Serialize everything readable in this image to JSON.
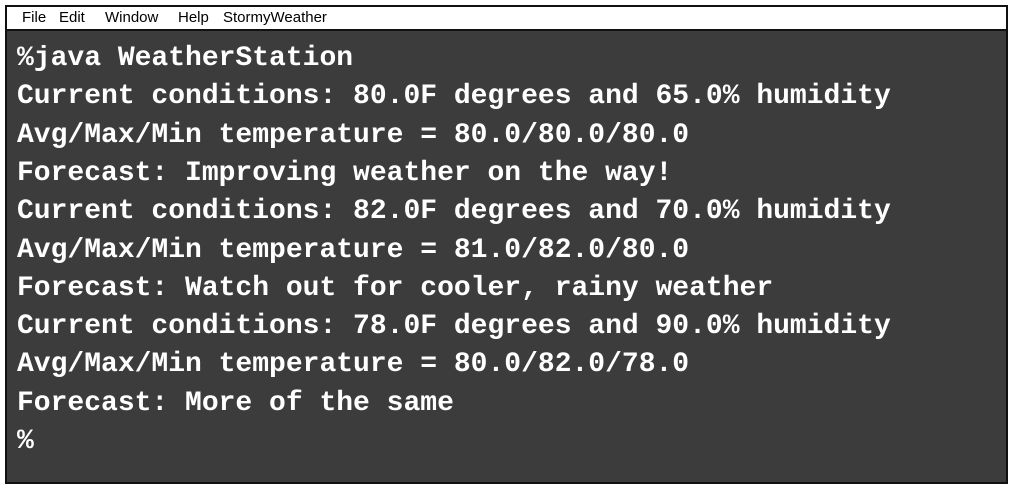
{
  "menu": [
    "File",
    "Edit",
    "Window",
    "Help",
    "StormyWeather"
  ],
  "terminal": {
    "lines": [
      "%java WeatherStation",
      "Current conditions: 80.0F degrees and 65.0% humidity",
      "Avg/Max/Min temperature = 80.0/80.0/80.0",
      "Forecast: Improving weather on the way!",
      "Current conditions: 82.0F degrees and 70.0% humidity",
      "Avg/Max/Min temperature = 81.0/82.0/80.0",
      "Forecast: Watch out for cooler, rainy weather",
      "Current conditions: 78.0F degrees and 90.0% humidity",
      "Avg/Max/Min temperature = 80.0/82.0/78.0",
      "Forecast: More of the same",
      "%"
    ]
  }
}
